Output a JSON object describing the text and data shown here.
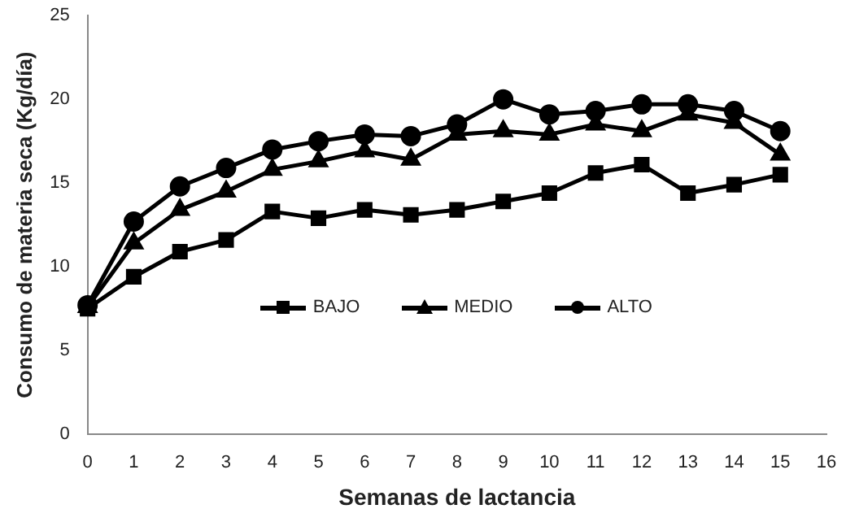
{
  "chart_data": {
    "type": "line",
    "xlabel": "Semanas de lactancia",
    "ylabel": "Consumo de materia seca (Kg/día)",
    "x": [
      0,
      1,
      2,
      3,
      4,
      5,
      6,
      7,
      8,
      9,
      10,
      11,
      12,
      13,
      14,
      15
    ],
    "xlim": [
      0,
      16
    ],
    "xticks": [
      0,
      1,
      2,
      3,
      4,
      5,
      6,
      7,
      8,
      9,
      10,
      11,
      12,
      13,
      14,
      15,
      16
    ],
    "ylim": [
      0,
      25
    ],
    "yticks": [
      0,
      5,
      10,
      15,
      20,
      25
    ],
    "grid": false,
    "legend": "center",
    "line_style": "solid",
    "series": [
      {
        "name": "BAJO",
        "color": "#000000",
        "marker": "square",
        "values": [
          7.5,
          9.4,
          10.9,
          11.6,
          13.3,
          12.9,
          13.4,
          13.1,
          13.4,
          13.9,
          14.4,
          15.6,
          16.1,
          14.4,
          14.9,
          15.5
        ]
      },
      {
        "name": "MEDIO",
        "color": "#000000",
        "marker": "triangle",
        "values": [
          7.6,
          11.4,
          13.4,
          14.5,
          15.8,
          16.3,
          16.9,
          16.4,
          17.9,
          18.1,
          17.9,
          18.5,
          18.1,
          19.1,
          18.6,
          16.7
        ]
      },
      {
        "name": "ALTO",
        "color": "#000000",
        "marker": "circle",
        "values": [
          7.7,
          12.7,
          14.8,
          15.9,
          17.0,
          17.5,
          17.9,
          17.8,
          18.5,
          20.0,
          19.1,
          19.3,
          19.7,
          19.7,
          19.3,
          18.1
        ]
      }
    ]
  }
}
